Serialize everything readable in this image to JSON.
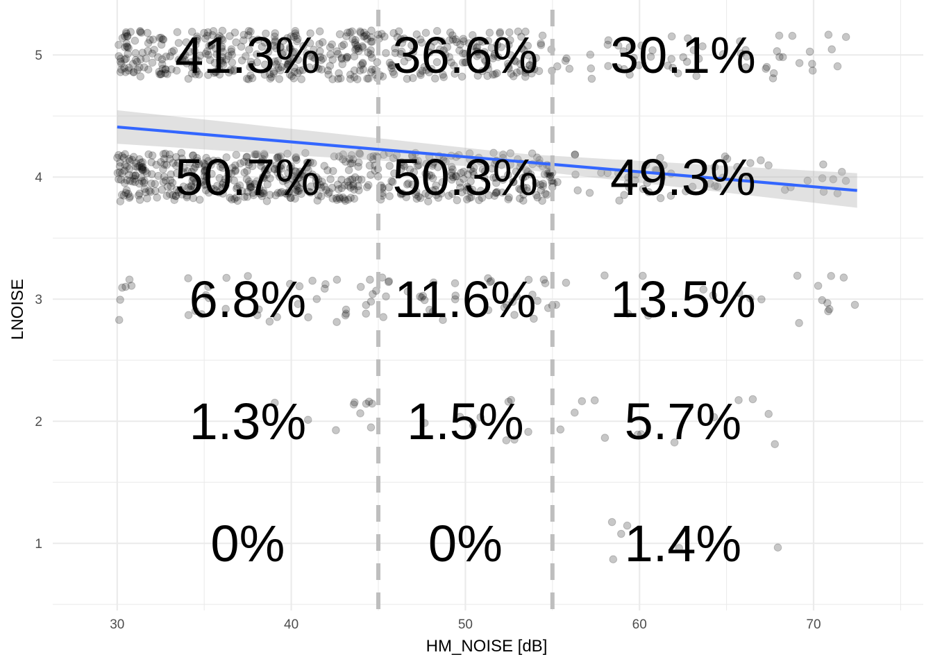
{
  "chart_data": {
    "type": "scatter",
    "title": "",
    "xlabel": "HM_NOISE [dB]",
    "ylabel": "LNOISE",
    "xlim": [
      26.3,
      76.3
    ],
    "ylim": [
      0.45,
      5.45
    ],
    "x_ticks": [
      30,
      40,
      50,
      60,
      70
    ],
    "y_ticks": [
      1,
      2,
      3,
      4,
      5
    ],
    "grid": true,
    "legend": "none",
    "vertical_reference_lines": [
      45,
      55
    ],
    "jitter": {
      "x_range": [
        30,
        72.5
      ],
      "y_spread": 0.2
    },
    "point_color": "#000000",
    "point_opacity": 0.22,
    "trend_line": {
      "method": "linear",
      "x": [
        30,
        72.5
      ],
      "y": [
        4.41,
        3.89
      ],
      "ci_halfwidth_at_ends": [
        0.13,
        0.15
      ],
      "color": "#3366ff",
      "band_color": "#b3b3b3"
    },
    "bins": [
      {
        "x_center": 37.5,
        "x_range": [
          30,
          45
        ]
      },
      {
        "x_center": 50,
        "x_range": [
          45,
          55
        ]
      },
      {
        "x_center": 62.5,
        "x_range": [
          55,
          72.5
        ]
      }
    ],
    "percentages": [
      {
        "level": 5,
        "labels": [
          "41.3%",
          "36.6%",
          "30.1%"
        ],
        "values": [
          41.3,
          36.6,
          30.1
        ]
      },
      {
        "level": 4,
        "labels": [
          "50.7%",
          "50.3%",
          "49.3%"
        ],
        "values": [
          50.7,
          50.3,
          49.3
        ]
      },
      {
        "level": 3,
        "labels": [
          "6.8%",
          "11.6%",
          "13.5%"
        ],
        "values": [
          6.8,
          11.6,
          13.5
        ]
      },
      {
        "level": 2,
        "labels": [
          "1.3%",
          "1.5%",
          "5.7%"
        ],
        "values": [
          1.3,
          1.5,
          5.7
        ]
      },
      {
        "level": 1,
        "labels": [
          "0%",
          "0%",
          "1.4%"
        ],
        "values": [
          0,
          0,
          1.4
        ]
      }
    ]
  }
}
